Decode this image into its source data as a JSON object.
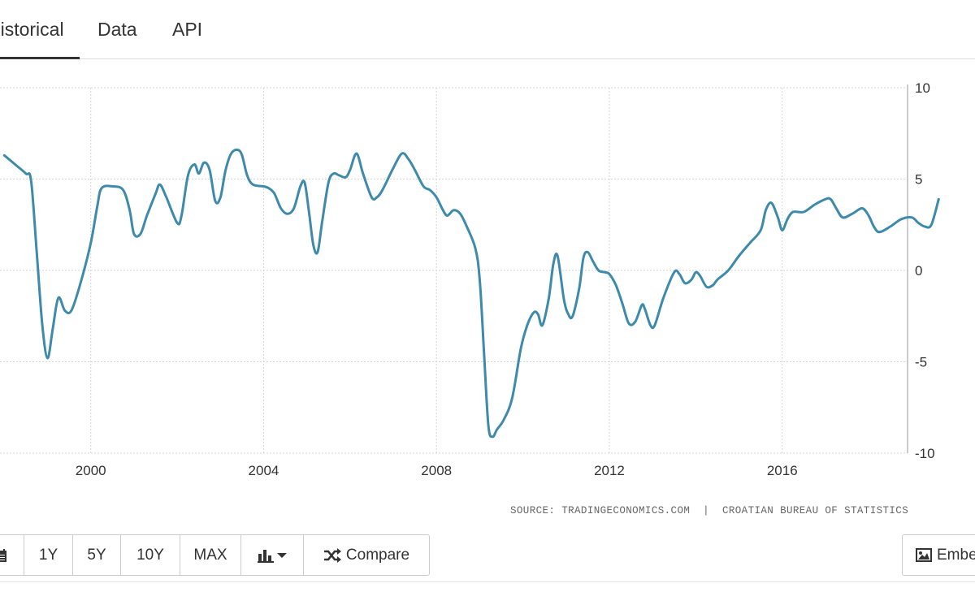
{
  "tabs": [
    {
      "label": "Historical",
      "active": true
    },
    {
      "label": "Data",
      "active": false
    },
    {
      "label": "API",
      "active": false
    }
  ],
  "source": {
    "prefix": "SOURCE:",
    "site": "TRADINGECONOMICS.COM",
    "separator": "|",
    "provider": "CROATIAN BUREAU OF STATISTICS"
  },
  "toolbar": {
    "calendar_icon": "calendar-icon",
    "buttons": [
      "1Y",
      "5Y",
      "10Y",
      "MAX"
    ],
    "chart_type_icon": "bar-chart-icon",
    "compare_label": "Compare",
    "compare_icon": "shuffle-icon"
  },
  "embed": {
    "label": "Embed",
    "icon": "image-icon"
  },
  "colors": {
    "line": "#3d8aaa",
    "grid": "#d5d5d5",
    "text": "#333333"
  },
  "chart_data": {
    "type": "line",
    "title": "",
    "xlabel": "",
    "ylabel": "",
    "xlim": [
      1997.9,
      2018.9
    ],
    "ylim": [
      -10,
      10
    ],
    "yticks": [
      10,
      5,
      0,
      -5,
      -10
    ],
    "xticks": [
      2000,
      2004,
      2008,
      2012,
      2016
    ],
    "y_axis_position": "right",
    "grid": true,
    "series": [
      {
        "values": [
          [
            1998.0,
            6.3
          ],
          [
            1998.25,
            5.8
          ],
          [
            1998.5,
            5.3
          ],
          [
            1998.62,
            4.9
          ],
          [
            1998.75,
            1.0
          ],
          [
            1998.88,
            -3.0
          ],
          [
            1999.0,
            -4.8
          ],
          [
            1999.12,
            -3.2
          ],
          [
            1999.25,
            -1.5
          ],
          [
            1999.4,
            -2.2
          ],
          [
            1999.55,
            -2.2
          ],
          [
            1999.75,
            -0.8
          ],
          [
            2000.0,
            1.5
          ],
          [
            2000.15,
            3.5
          ],
          [
            2000.25,
            4.5
          ],
          [
            2000.5,
            4.6
          ],
          [
            2000.75,
            4.4
          ],
          [
            2000.9,
            3.3
          ],
          [
            2001.0,
            2.0
          ],
          [
            2001.15,
            2.0
          ],
          [
            2001.3,
            3.0
          ],
          [
            2001.5,
            4.2
          ],
          [
            2001.6,
            4.7
          ],
          [
            2001.75,
            4.0
          ],
          [
            2002.0,
            2.6
          ],
          [
            2002.1,
            3.0
          ],
          [
            2002.25,
            5.2
          ],
          [
            2002.4,
            5.8
          ],
          [
            2002.5,
            5.3
          ],
          [
            2002.62,
            5.9
          ],
          [
            2002.75,
            5.5
          ],
          [
            2002.88,
            3.8
          ],
          [
            2003.0,
            4.0
          ],
          [
            2003.12,
            5.5
          ],
          [
            2003.25,
            6.4
          ],
          [
            2003.4,
            6.6
          ],
          [
            2003.5,
            6.3
          ],
          [
            2003.62,
            5.2
          ],
          [
            2003.75,
            4.7
          ],
          [
            2004.0,
            4.6
          ],
          [
            2004.12,
            4.5
          ],
          [
            2004.25,
            4.2
          ],
          [
            2004.4,
            3.4
          ],
          [
            2004.55,
            3.1
          ],
          [
            2004.7,
            3.4
          ],
          [
            2004.85,
            4.6
          ],
          [
            2004.95,
            4.8
          ],
          [
            2005.05,
            3.2
          ],
          [
            2005.15,
            1.4
          ],
          [
            2005.25,
            1.0
          ],
          [
            2005.35,
            2.6
          ],
          [
            2005.5,
            4.8
          ],
          [
            2005.62,
            5.3
          ],
          [
            2005.75,
            5.2
          ],
          [
            2005.9,
            5.1
          ],
          [
            2006.0,
            5.5
          ],
          [
            2006.15,
            6.4
          ],
          [
            2006.3,
            5.3
          ],
          [
            2006.5,
            4.0
          ],
          [
            2006.62,
            4.0
          ],
          [
            2006.75,
            4.4
          ],
          [
            2007.0,
            5.6
          ],
          [
            2007.2,
            6.4
          ],
          [
            2007.35,
            6.1
          ],
          [
            2007.5,
            5.5
          ],
          [
            2007.7,
            4.6
          ],
          [
            2007.85,
            4.4
          ],
          [
            2008.0,
            4.0
          ],
          [
            2008.15,
            3.3
          ],
          [
            2008.25,
            3.0
          ],
          [
            2008.4,
            3.3
          ],
          [
            2008.55,
            3.1
          ],
          [
            2008.7,
            2.4
          ],
          [
            2008.9,
            1.2
          ],
          [
            2009.0,
            -0.5
          ],
          [
            2009.1,
            -4.5
          ],
          [
            2009.2,
            -8.5
          ],
          [
            2009.3,
            -9.1
          ],
          [
            2009.4,
            -8.7
          ],
          [
            2009.55,
            -8.2
          ],
          [
            2009.75,
            -7.0
          ],
          [
            2009.95,
            -4.3
          ],
          [
            2010.1,
            -3.0
          ],
          [
            2010.25,
            -2.3
          ],
          [
            2010.35,
            -2.4
          ],
          [
            2010.45,
            -3.0
          ],
          [
            2010.6,
            -1.5
          ],
          [
            2010.7,
            0.3
          ],
          [
            2010.8,
            0.8
          ],
          [
            2010.95,
            -1.6
          ],
          [
            2011.05,
            -2.4
          ],
          [
            2011.15,
            -2.5
          ],
          [
            2011.3,
            -1.0
          ],
          [
            2011.4,
            0.7
          ],
          [
            2011.5,
            1.0
          ],
          [
            2011.62,
            0.5
          ],
          [
            2011.75,
            0.0
          ],
          [
            2011.9,
            -0.1
          ],
          [
            2012.0,
            -0.2
          ],
          [
            2012.15,
            -0.8
          ],
          [
            2012.3,
            -1.8
          ],
          [
            2012.45,
            -2.9
          ],
          [
            2012.6,
            -2.8
          ],
          [
            2012.75,
            -1.9
          ],
          [
            2012.82,
            -2.1
          ],
          [
            2012.95,
            -3.0
          ],
          [
            2013.05,
            -3.0
          ],
          [
            2013.25,
            -1.5
          ],
          [
            2013.5,
            -0.1
          ],
          [
            2013.62,
            -0.2
          ],
          [
            2013.75,
            -0.7
          ],
          [
            2013.9,
            -0.5
          ],
          [
            2014.0,
            -0.1
          ],
          [
            2014.1,
            -0.3
          ],
          [
            2014.25,
            -0.9
          ],
          [
            2014.4,
            -0.8
          ],
          [
            2014.5,
            -0.5
          ],
          [
            2014.75,
            0.0
          ],
          [
            2015.0,
            0.8
          ],
          [
            2015.25,
            1.5
          ],
          [
            2015.5,
            2.2
          ],
          [
            2015.62,
            3.3
          ],
          [
            2015.75,
            3.7
          ],
          [
            2015.9,
            2.9
          ],
          [
            2016.0,
            2.2
          ],
          [
            2016.12,
            2.8
          ],
          [
            2016.25,
            3.2
          ],
          [
            2016.5,
            3.2
          ],
          [
            2016.75,
            3.6
          ],
          [
            2017.0,
            3.9
          ],
          [
            2017.12,
            3.9
          ],
          [
            2017.25,
            3.4
          ],
          [
            2017.4,
            2.9
          ],
          [
            2017.62,
            3.1
          ],
          [
            2017.85,
            3.4
          ],
          [
            2018.0,
            3.0
          ],
          [
            2018.12,
            2.4
          ],
          [
            2018.25,
            2.1
          ],
          [
            2018.5,
            2.4
          ],
          [
            2018.75,
            2.8
          ],
          [
            2019.0,
            2.9
          ],
          [
            2019.15,
            2.6
          ],
          [
            2019.3,
            2.4
          ],
          [
            2019.45,
            2.5
          ],
          [
            2019.62,
            3.9
          ]
        ]
      }
    ]
  }
}
